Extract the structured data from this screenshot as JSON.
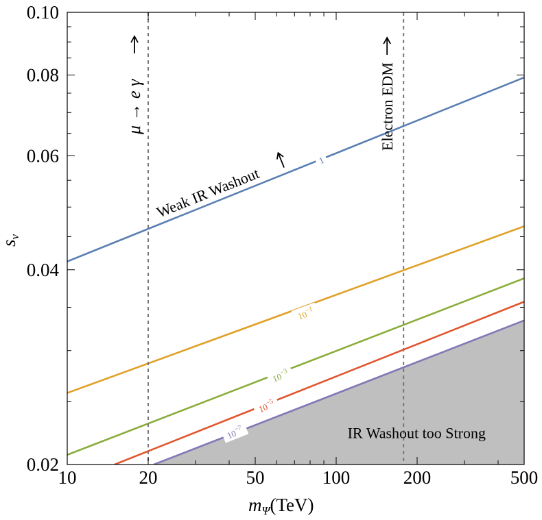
{
  "chart_data": {
    "type": "line",
    "x_scale": "log",
    "y_scale": "log",
    "xlim": [
      10,
      500
    ],
    "ylim": [
      0.02,
      0.1
    ],
    "x_ticks": [
      10,
      20,
      50,
      100,
      200,
      500
    ],
    "x_tick_labels": [
      "10",
      "20",
      "50",
      "100",
      "200",
      "500"
    ],
    "y_ticks": [
      0.02,
      0.04,
      0.06,
      0.08,
      0.1
    ],
    "y_tick_labels": [
      "0.02",
      "0.04",
      "0.06",
      "0.08",
      "0.10"
    ],
    "xlabel_main": "m",
    "xlabel_sub": "Ψ",
    "xlabel_unit": "(TeV)",
    "ylabel_main": "s",
    "ylabel_sub": "ν",
    "series": [
      {
        "name": "1",
        "color": "#5b7fb3",
        "points": [
          [
            10,
            0.0412
          ],
          [
            500,
            0.0793
          ]
        ],
        "label_at": [
          88,
          0.0591
        ]
      },
      {
        "name": "10^-1",
        "color": "#e0a026",
        "points": [
          [
            10,
            0.0258
          ],
          [
            500,
            0.0467
          ]
        ],
        "label_at": [
          77,
          0.0342
        ]
      },
      {
        "name": "10^-3",
        "color": "#8aac3a",
        "points": [
          [
            10,
            0.0207
          ],
          [
            500,
            0.0388
          ]
        ],
        "label_at": [
          62,
          0.0274
        ]
      },
      {
        "name": "10^-5",
        "color": "#e0562e",
        "points": [
          [
            15,
            0.02
          ],
          [
            500,
            0.0357
          ]
        ],
        "label_at": [
          55,
          0.0246
        ]
      },
      {
        "name": "10^-7",
        "color": "#8378b6",
        "points": [
          [
            21,
            0.02
          ],
          [
            500,
            0.0334
          ]
        ],
        "label_at": [
          42,
          0.0224
        ]
      }
    ],
    "contour_labels": [
      {
        "base": "1",
        "exp": ""
      },
      {
        "base": "10",
        "exp": "−1"
      },
      {
        "base": "10",
        "exp": "−3"
      },
      {
        "base": "10",
        "exp": "−5"
      },
      {
        "base": "10",
        "exp": "−7"
      }
    ],
    "shaded_region": {
      "label": "IR Washout too Strong",
      "color": "#bfbfbf",
      "label_at": [
        140,
        0.0224
      ]
    },
    "vertical_lines": [
      {
        "x": 20,
        "label": "μ → e γ",
        "style": "dashed"
      },
      {
        "x": 178,
        "label": "Electron EDM",
        "style": "dashed"
      }
    ],
    "annotations": [
      {
        "text": "Weak IR Washout",
        "at": [
          19.8,
          0.0472
        ]
      }
    ]
  }
}
